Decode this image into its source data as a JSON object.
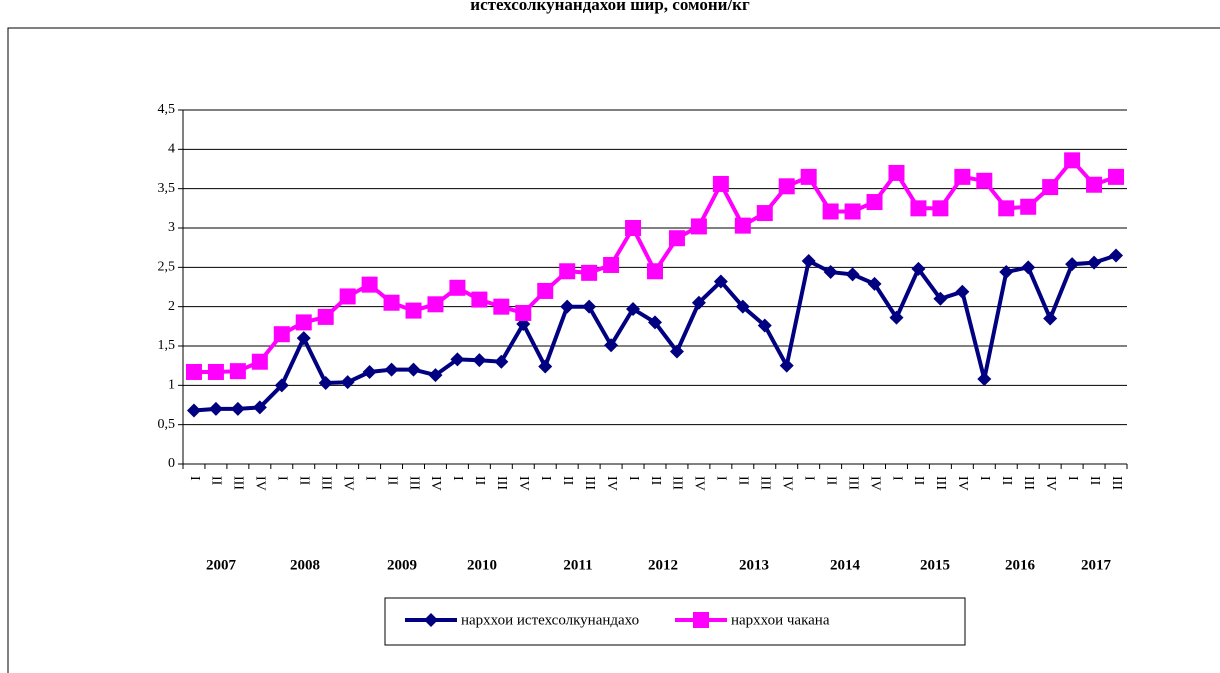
{
  "chart_data": {
    "type": "line",
    "title": "истехсолкунандахои шир, сомони/кг",
    "categories": [
      "I",
      "II",
      "III",
      "IV",
      "I",
      "II",
      "III",
      "IV",
      "I",
      "II",
      "III",
      "IV",
      "I",
      "II",
      "III",
      "IV",
      "I",
      "II",
      "III",
      "IV",
      "I",
      "II",
      "III",
      "IV",
      "I",
      "II",
      "III",
      "IV",
      "I",
      "II",
      "III",
      "IV",
      "I",
      "II",
      "III",
      "IV",
      "I",
      "II",
      "III",
      "IV",
      "I",
      "II",
      "III"
    ],
    "years": [
      "2007",
      "2008",
      "2009",
      "2010",
      "2011",
      "2012",
      "2013",
      "2014",
      "2015",
      "2016",
      "2017"
    ],
    "series": [
      {
        "name": "нарххои истехсолкунандахо",
        "color": "#000080",
        "marker": "diamond",
        "values": [
          0.68,
          0.7,
          0.7,
          0.72,
          1.0,
          1.6,
          1.03,
          1.04,
          1.17,
          1.2,
          1.2,
          1.13,
          1.33,
          1.32,
          1.3,
          1.78,
          1.24,
          2.0,
          2.0,
          1.51,
          1.97,
          1.8,
          1.43,
          2.05,
          2.32,
          2.0,
          1.76,
          1.25,
          2.58,
          2.44,
          2.41,
          2.29,
          1.86,
          2.48,
          2.1,
          2.19,
          1.08,
          2.44,
          2.5,
          1.85,
          2.54,
          2.56,
          2.65
        ]
      },
      {
        "name": "нарххои чакана",
        "color": "#ff00ff",
        "marker": "square",
        "values": [
          1.17,
          1.17,
          1.18,
          1.3,
          1.65,
          1.8,
          1.87,
          2.13,
          2.28,
          2.05,
          1.95,
          2.03,
          2.24,
          2.09,
          2.0,
          1.92,
          2.2,
          2.45,
          2.43,
          2.53,
          3.0,
          2.45,
          2.87,
          3.02,
          3.56,
          3.03,
          3.19,
          3.53,
          3.65,
          3.21,
          3.21,
          3.33,
          3.7,
          3.25,
          3.25,
          3.65,
          3.6,
          3.25,
          3.27,
          3.52,
          3.86,
          3.55,
          3.65
        ]
      }
    ],
    "ylim": [
      0,
      4.5
    ],
    "yticks": [
      0,
      {
        "value": 0.5,
        "label": "0,5"
      },
      1,
      {
        "value": 1.5,
        "label": "1,5"
      },
      2,
      {
        "value": 2.5,
        "label": "2,5"
      },
      3,
      {
        "value": 3.5,
        "label": "3,5"
      },
      4,
      {
        "value": 4.5,
        "label": "4,5"
      }
    ],
    "grid": true,
    "legend": "bottom"
  }
}
